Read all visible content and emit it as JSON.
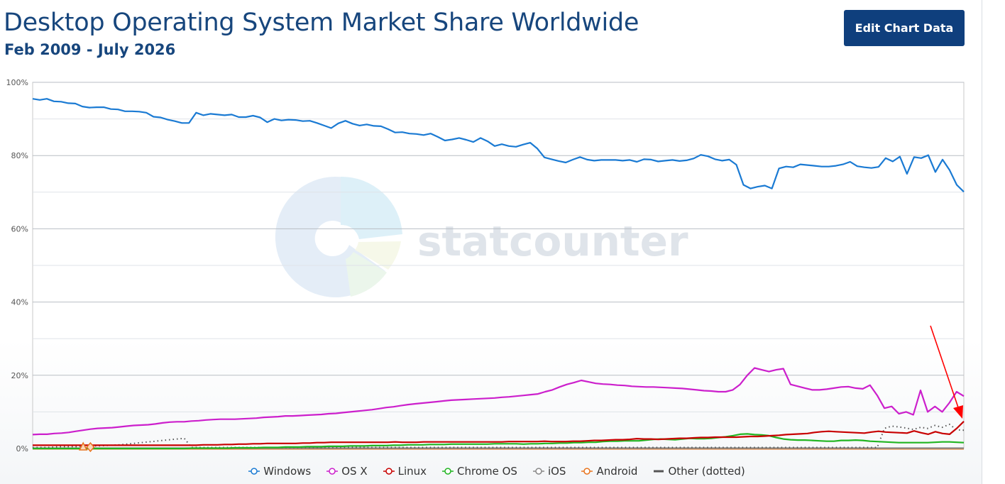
{
  "header": {
    "title": "Desktop Operating System Market Share Worldwide",
    "subtitle": "Feb 2009 - July 2026",
    "edit_button": "Edit Chart Data"
  },
  "watermark": {
    "text": "statcounter"
  },
  "chart_data": {
    "type": "line",
    "title": "Desktop Operating System Market Share Worldwide",
    "subtitle": "Feb 2009 - July 2026",
    "xlabel": "",
    "ylabel": "",
    "x_range": [
      "Feb 2009",
      "July 2026"
    ],
    "ylim": [
      0,
      100
    ],
    "yticks": [
      0,
      20,
      40,
      60,
      80,
      100
    ],
    "ytick_labels": [
      "0%",
      "20%",
      "40%",
      "60%",
      "80%",
      "100%"
    ],
    "grid": true,
    "legend_position": "bottom",
    "series": [
      {
        "name": "Windows",
        "color": "#1a7ad3",
        "values": [
          95.5,
          95.2,
          95.5,
          94.8,
          94.7,
          94.3,
          94.2,
          93.4,
          93.1,
          93.2,
          93.2,
          92.7,
          92.6,
          92.1,
          92.1,
          92.0,
          91.7,
          90.6,
          90.4,
          89.8,
          89.4,
          88.9,
          88.9,
          91.7,
          91.0,
          91.4,
          91.2,
          91.0,
          91.2,
          90.5,
          90.5,
          90.9,
          90.4,
          89.1,
          90.0,
          89.6,
          89.8,
          89.7,
          89.4,
          89.5,
          88.9,
          88.2,
          87.5,
          88.8,
          89.5,
          88.7,
          88.2,
          88.5,
          88.1,
          88.0,
          87.2,
          86.3,
          86.4,
          86.0,
          85.9,
          85.6,
          86.0,
          85.1,
          84.1,
          84.4,
          84.8,
          84.3,
          83.7,
          84.8,
          83.9,
          82.6,
          83.1,
          82.6,
          82.4,
          83.0,
          83.5,
          81.9,
          79.5,
          79.0,
          78.5,
          78.1,
          78.9,
          79.6,
          78.9,
          78.6,
          78.8,
          78.8,
          78.8,
          78.6,
          78.8,
          78.3,
          79.0,
          78.9,
          78.4,
          78.6,
          78.8,
          78.5,
          78.7,
          79.2,
          80.2,
          79.8,
          79.0,
          78.6,
          78.9,
          77.5,
          72.0,
          71.0,
          71.5,
          71.8,
          71.0,
          76.5,
          77.0,
          76.8,
          77.6,
          77.4,
          77.2,
          77.0,
          77.0,
          77.2,
          77.6,
          78.3,
          77.1,
          76.8,
          76.6,
          76.9,
          79.3,
          78.4,
          79.7,
          75.0,
          79.6,
          79.3,
          80.1,
          75.5,
          78.9,
          76.0,
          72.0,
          70.1
        ]
      },
      {
        "name": "OS X",
        "color": "#cc1fcc",
        "values": [
          3.8,
          3.9,
          3.9,
          4.1,
          4.2,
          4.4,
          4.7,
          5.0,
          5.3,
          5.5,
          5.6,
          5.7,
          5.9,
          6.1,
          6.3,
          6.4,
          6.5,
          6.7,
          7.0,
          7.2,
          7.3,
          7.3,
          7.5,
          7.6,
          7.8,
          7.9,
          8.0,
          8.0,
          8.0,
          8.1,
          8.2,
          8.3,
          8.5,
          8.6,
          8.7,
          8.9,
          8.9,
          9.0,
          9.1,
          9.2,
          9.3,
          9.5,
          9.6,
          9.8,
          10.0,
          10.2,
          10.4,
          10.6,
          10.9,
          11.2,
          11.4,
          11.7,
          12.0,
          12.2,
          12.4,
          12.6,
          12.8,
          13.0,
          13.2,
          13.3,
          13.4,
          13.5,
          13.6,
          13.7,
          13.8,
          14.0,
          14.1,
          14.3,
          14.5,
          14.7,
          14.9,
          15.5,
          16.0,
          16.8,
          17.5,
          18.0,
          18.6,
          18.2,
          17.8,
          17.6,
          17.5,
          17.3,
          17.2,
          17.0,
          16.9,
          16.8,
          16.8,
          16.7,
          16.6,
          16.5,
          16.4,
          16.2,
          16.0,
          15.8,
          15.7,
          15.5,
          15.5,
          16.0,
          17.5,
          20.0,
          22.0,
          21.5,
          21.0,
          21.5,
          21.8,
          17.5,
          17.0,
          16.5,
          16.0,
          16.0,
          16.2,
          16.5,
          16.8,
          16.9,
          16.5,
          16.3,
          17.3,
          14.5,
          11.0,
          11.5,
          9.5,
          10.0,
          9.2,
          15.9,
          10.0,
          11.5,
          10.0,
          12.5,
          15.5,
          14.3
        ]
      },
      {
        "name": "Linux",
        "color": "#c80000",
        "values": [
          0.9,
          0.9,
          0.9,
          0.9,
          0.9,
          0.9,
          0.9,
          0.9,
          0.9,
          0.9,
          0.9,
          0.9,
          0.9,
          0.9,
          0.9,
          0.9,
          0.9,
          0.9,
          0.9,
          0.9,
          0.9,
          0.9,
          0.9,
          0.9,
          1.0,
          1.0,
          1.0,
          1.1,
          1.1,
          1.2,
          1.2,
          1.3,
          1.3,
          1.4,
          1.4,
          1.4,
          1.4,
          1.4,
          1.5,
          1.5,
          1.6,
          1.6,
          1.7,
          1.7,
          1.7,
          1.7,
          1.7,
          1.7,
          1.7,
          1.7,
          1.7,
          1.8,
          1.7,
          1.7,
          1.7,
          1.8,
          1.8,
          1.8,
          1.8,
          1.8,
          1.8,
          1.8,
          1.8,
          1.8,
          1.8,
          1.8,
          1.8,
          1.9,
          1.9,
          1.9,
          1.9,
          1.9,
          2.0,
          1.9,
          1.9,
          1.9,
          2.0,
          2.0,
          2.1,
          2.2,
          2.2,
          2.3,
          2.4,
          2.4,
          2.5,
          2.7,
          2.6,
          2.6,
          2.5,
          2.6,
          2.7,
          2.8,
          2.8,
          2.9,
          3.0,
          3.0,
          3.1,
          3.1,
          3.1,
          3.1,
          3.2,
          3.3,
          3.3,
          3.4,
          3.5,
          3.6,
          3.8,
          3.9,
          4.0,
          4.1,
          4.4,
          4.6,
          4.7,
          4.6,
          4.5,
          4.4,
          4.3,
          4.2,
          4.5,
          4.7,
          4.5,
          4.4,
          4.3,
          4.2,
          4.8,
          4.3,
          3.9,
          4.6,
          4.1,
          3.9,
          5.5,
          7.4
        ]
      },
      {
        "name": "Chrome OS",
        "color": "#21b521",
        "values": [
          0.0,
          0.0,
          0.0,
          0.0,
          0.0,
          0.0,
          0.0,
          0.0,
          0.0,
          0.0,
          0.0,
          0.0,
          0.0,
          0.0,
          0.0,
          0.0,
          0.0,
          0.0,
          0.0,
          0.0,
          0.0,
          0.0,
          0.1,
          0.1,
          0.1,
          0.1,
          0.1,
          0.1,
          0.2,
          0.2,
          0.2,
          0.2,
          0.3,
          0.3,
          0.3,
          0.4,
          0.4,
          0.4,
          0.5,
          0.5,
          0.5,
          0.6,
          0.6,
          0.6,
          0.7,
          0.7,
          0.7,
          0.8,
          0.8,
          0.8,
          0.9,
          0.9,
          1.0,
          1.0,
          1.0,
          1.1,
          1.1,
          1.1,
          1.2,
          1.2,
          1.2,
          1.2,
          1.2,
          1.2,
          1.3,
          1.3,
          1.3,
          1.3,
          1.2,
          1.3,
          1.3,
          1.4,
          1.4,
          1.5,
          1.5,
          1.6,
          1.6,
          1.7,
          1.7,
          1.9,
          2.0,
          2.0,
          2.1,
          2.1,
          2.1,
          2.3,
          2.5,
          2.6,
          2.5,
          2.4,
          2.6,
          2.8,
          2.7,
          2.7,
          2.8,
          3.0,
          3.2,
          3.5,
          3.9,
          4.0,
          3.8,
          3.7,
          3.5,
          3.0,
          2.6,
          2.4,
          2.3,
          2.3,
          2.2,
          2.1,
          2.0,
          2.0,
          2.2,
          2.2,
          2.3,
          2.2,
          2.0,
          1.9,
          1.8,
          1.7,
          1.6,
          1.6,
          1.6,
          1.6,
          1.6,
          1.7,
          1.8,
          1.8,
          1.7,
          1.6
        ]
      },
      {
        "name": "iOS",
        "color": "#888888",
        "values": [
          0.1,
          0.1,
          0.1,
          0.1,
          0.1,
          0.1,
          0.1,
          0.1,
          0.1,
          0.1,
          0.1,
          0.1,
          0.1,
          0.1,
          0.1,
          0.1,
          0.1,
          0.1,
          0.1,
          0.1,
          0.1,
          0.1,
          0.1,
          0.1,
          0.1,
          0.1,
          0.1,
          0.1,
          0.1,
          0.1,
          0.1,
          0.1,
          0.1,
          0.1,
          0.1,
          0.1,
          0.1,
          0.1,
          0.1,
          0.1,
          0.1,
          0.1,
          0.1,
          0.1,
          0.1,
          0.1,
          0.1,
          0.1,
          0.1,
          0.1,
          0.1,
          0.1,
          0.1,
          0.1,
          0.1,
          0.1,
          0.1,
          0.1,
          0.1,
          0.1,
          0.1,
          0.1,
          0.1,
          0.1,
          0.1,
          0.1,
          0.1,
          0.1,
          0.1,
          0.1,
          0.1,
          0.1,
          0.1,
          0.1,
          0.1,
          0.1,
          0.1,
          0.1,
          0.1,
          0.1,
          0.1,
          0.1,
          0.1,
          0.1,
          0.1,
          0.1,
          0.1,
          0.1,
          0.1,
          0.1,
          0.1,
          0.1,
          0.1,
          0.1,
          0.1,
          0.1,
          0.1,
          0.1,
          0.1,
          0.1,
          0.1,
          0.1,
          0.1,
          0.1,
          0.1,
          0.1,
          0.1,
          0.1,
          0.1,
          0.1,
          0.1,
          0.1,
          0.1,
          0.1,
          0.1,
          0.1,
          0.1,
          0.1,
          0.1,
          0.1,
          0.1,
          0.1,
          0.1,
          0.1,
          0.1,
          0.1,
          0.1,
          0.1,
          0.1,
          0.1
        ]
      },
      {
        "name": "Android",
        "color": "#e8741e",
        "values": [
          0.0,
          0.0,
          0.0,
          0.0,
          0.0,
          0.0,
          0.0,
          0.0,
          0.0,
          0.0,
          0.0,
          0.0,
          0.0,
          0.0,
          0.0,
          0.0,
          0.0,
          0.0,
          0.0,
          0.0,
          0.0,
          0.0,
          0.0,
          0.0,
          0.0,
          0.0,
          0.0,
          0.0,
          0.0,
          0.0,
          0.0,
          0.0,
          0.0,
          0.0,
          0.0,
          0.0,
          0.0,
          0.0,
          0.0,
          0.0,
          0.0,
          0.0,
          0.0,
          0.0,
          0.0,
          0.0,
          0.0,
          0.0,
          0.0,
          0.0,
          0.0,
          0.0,
          0.0,
          0.0,
          0.0,
          0.0,
          0.0,
          0.0,
          0.0,
          0.0,
          0.0,
          0.0,
          0.0,
          0.0,
          0.0,
          0.0,
          0.0,
          0.0,
          0.0,
          0.0,
          0.0,
          0.0,
          0.0,
          0.0,
          0.0,
          0.0,
          0.0,
          0.0,
          0.0,
          0.0,
          0.0,
          0.0,
          0.0,
          0.0,
          0.0,
          0.0,
          0.0,
          0.0,
          0.0,
          0.0,
          0.0,
          0.0,
          0.0,
          0.0,
          0.0,
          0.0,
          0.0,
          0.0,
          0.0,
          0.0,
          0.0,
          0.0,
          0.0,
          0.0,
          0.0,
          0.0,
          0.0,
          0.0,
          0.0,
          0.0,
          0.0,
          0.0,
          0.0,
          0.0,
          0.0,
          0.0,
          0.0,
          0.0,
          0.0,
          0.0,
          0.0,
          0.0,
          0.0,
          0.0,
          0.0,
          0.0,
          0.0,
          0.0,
          0.0,
          0.0
        ]
      },
      {
        "name": "Other (dotted)",
        "color": "#555555",
        "values": [
          0.3,
          0.3,
          0.3,
          0.4,
          0.5,
          0.5,
          0.5,
          0.6,
          0.7,
          0.7,
          0.8,
          0.9,
          1.0,
          1.2,
          1.4,
          1.6,
          1.8,
          2.0,
          2.2,
          2.4,
          2.6,
          2.8,
          0.3,
          0.3,
          0.3,
          0.3,
          0.3,
          0.3,
          0.3,
          0.3,
          0.3,
          0.3,
          0.3,
          0.3,
          0.3,
          0.3,
          0.3,
          0.3,
          0.3,
          0.3,
          0.3,
          0.3,
          0.3,
          0.3,
          0.3,
          0.3,
          0.3,
          0.3,
          0.3,
          0.3,
          0.3,
          0.3,
          0.3,
          0.3,
          0.3,
          0.3,
          0.3,
          0.3,
          0.3,
          0.3,
          0.3,
          0.3,
          0.3,
          0.3,
          0.3,
          0.3,
          0.3,
          0.3,
          0.3,
          0.3,
          0.3,
          0.3,
          0.3,
          0.3,
          0.3,
          0.3,
          0.3,
          0.3,
          0.3,
          0.3,
          0.3,
          0.3,
          0.3,
          0.3,
          0.3,
          0.3,
          0.3,
          0.3,
          0.3,
          0.3,
          0.3,
          0.3,
          0.3,
          0.3,
          0.3,
          0.3,
          0.3,
          0.3,
          0.3,
          0.3,
          0.3,
          0.3,
          0.3,
          0.3,
          0.3,
          0.3,
          0.3,
          0.3,
          0.3,
          0.3,
          0.3,
          0.3,
          0.3,
          0.3,
          0.3,
          0.3,
          0.3,
          0.3,
          5.5,
          6.1,
          5.9,
          5.6,
          5.2,
          5.8,
          5.5,
          6.3,
          5.8,
          6.6,
          5.1,
          5.0
        ]
      }
    ]
  },
  "legend": {
    "items": [
      {
        "label": "Windows",
        "symbol": "circle",
        "color": "#1a7ad3"
      },
      {
        "label": "OS X",
        "symbol": "circle",
        "color": "#cc1fcc"
      },
      {
        "label": "Linux",
        "symbol": "circle",
        "color": "#c80000"
      },
      {
        "label": "Chrome OS",
        "symbol": "circle",
        "color": "#21b521"
      },
      {
        "label": "iOS",
        "symbol": "circle",
        "color": "#888888"
      },
      {
        "label": "Android",
        "symbol": "circle",
        "color": "#e8741e"
      },
      {
        "label": "Other (dotted)",
        "symbol": "line",
        "color": "#555555"
      }
    ]
  },
  "annotation": {
    "type": "arrow",
    "color": "#ff0000",
    "target_series": "Linux",
    "target": "last point"
  }
}
